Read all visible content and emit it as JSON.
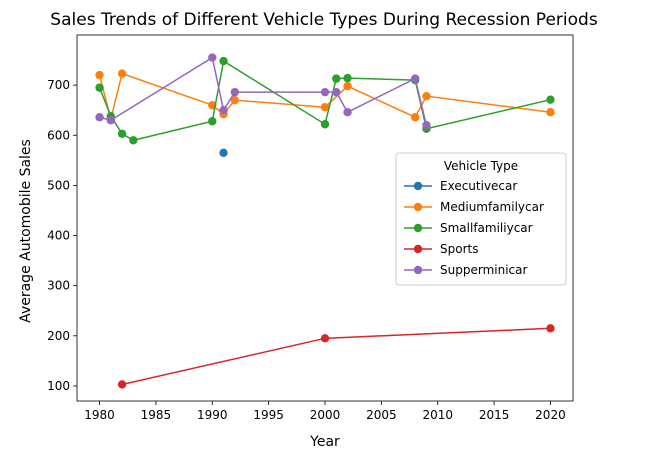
{
  "chart_data": {
    "type": "line",
    "title": "Sales Trends of Different Vehicle Types During Recession Periods",
    "xlabel": "Year",
    "ylabel": "Average Automobile Sales",
    "xlim": [
      1978,
      2022
    ],
    "ylim": [
      70,
      800
    ],
    "xticks": [
      1980,
      1985,
      1990,
      1995,
      2000,
      2005,
      2010,
      2015,
      2020
    ],
    "yticks": [
      100,
      200,
      300,
      400,
      500,
      600,
      700
    ],
    "legend": {
      "title": "Vehicle Type",
      "placement": "center-right"
    },
    "series": [
      {
        "name": "Executivecar",
        "color": "#1f77b4",
        "points": [
          [
            1991,
            565
          ]
        ]
      },
      {
        "name": "Mediumfamilycar",
        "color": "#ff7f0e",
        "points": [
          [
            1980,
            720
          ],
          [
            1981,
            632
          ],
          [
            1982,
            723
          ],
          [
            1990,
            660
          ],
          [
            1991,
            642
          ],
          [
            1992,
            670
          ],
          [
            2000,
            656
          ],
          [
            2002,
            698
          ],
          [
            2008,
            636
          ],
          [
            2009,
            678
          ],
          [
            2020,
            646
          ]
        ]
      },
      {
        "name": "Smallfamiliycar",
        "color": "#2ca02c",
        "points": [
          [
            1980,
            695
          ],
          [
            1981,
            638
          ],
          [
            1982,
            603
          ],
          [
            1983,
            590
          ],
          [
            1990,
            628
          ],
          [
            1991,
            748
          ],
          [
            2000,
            622
          ],
          [
            2001,
            713
          ],
          [
            2002,
            714
          ],
          [
            2008,
            710
          ],
          [
            2009,
            613
          ],
          [
            2020,
            671
          ]
        ]
      },
      {
        "name": "Sports",
        "color": "#d62728",
        "points": [
          [
            1982,
            103
          ],
          [
            2000,
            195
          ],
          [
            2020,
            215
          ]
        ]
      },
      {
        "name": "Supperminicar",
        "color": "#9467bd",
        "points": [
          [
            1980,
            636
          ],
          [
            1981,
            630
          ],
          [
            1990,
            755
          ],
          [
            1991,
            650
          ],
          [
            1992,
            686
          ],
          [
            2000,
            686
          ],
          [
            2001,
            686
          ],
          [
            2002,
            646
          ],
          [
            2008,
            713
          ],
          [
            2009,
            620
          ]
        ]
      }
    ]
  }
}
